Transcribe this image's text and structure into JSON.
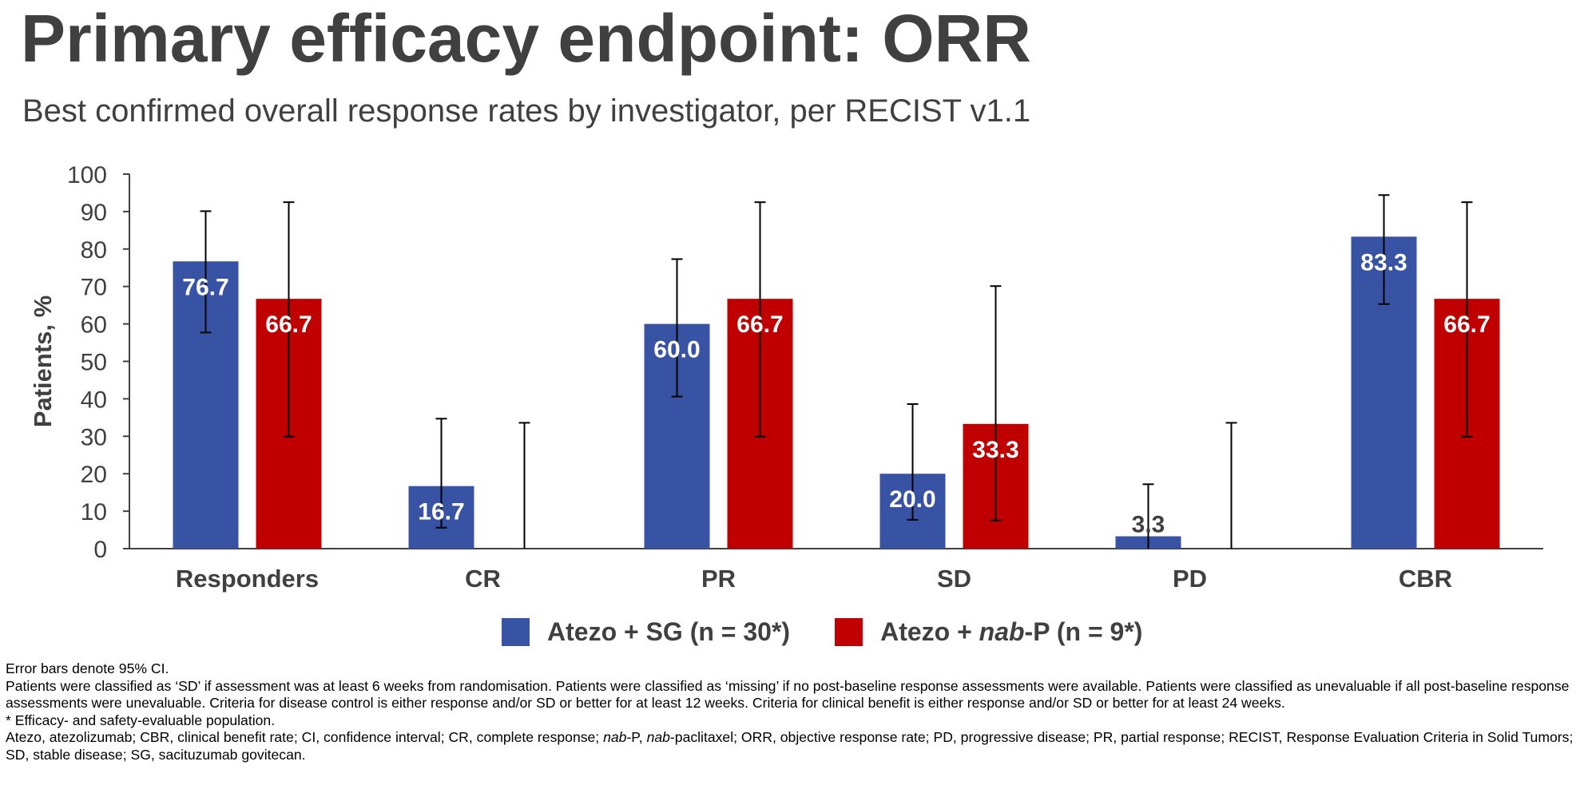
{
  "title": "Primary efficacy endpoint: ORR",
  "subtitle": "Best confirmed overall response rates by investigator, per RECIST v1.1",
  "colors": {
    "atezo_sg": "#3953A4",
    "atezo_nabp": "#C00000",
    "text": "#404040"
  },
  "legend": {
    "items": [
      {
        "label": "Atezo + SG (n = 30*)",
        "color": "#3953A4"
      },
      {
        "label_pre": "Atezo + ",
        "label_italic": "nab",
        "label_post": "-P (n = 9*)",
        "color": "#C00000"
      }
    ]
  },
  "chart_data": {
    "type": "bar",
    "ylabel": "Patients, %",
    "ylim": [
      0,
      100
    ],
    "yticks": [
      0,
      10,
      20,
      30,
      40,
      50,
      60,
      70,
      80,
      90,
      100
    ],
    "categories": [
      "Responders",
      "CR",
      "PR",
      "SD",
      "PD",
      "CBR"
    ],
    "series": [
      {
        "name": "Atezo + SG (n = 30*)",
        "color": "#3953A4",
        "values": [
          76.7,
          16.7,
          60.0,
          20.0,
          3.3,
          83.3
        ],
        "labels": [
          "76.7",
          "16.7",
          "60.0",
          "20.0",
          "3.3",
          "83.3"
        ],
        "ci_low": [
          57.7,
          5.6,
          40.6,
          7.7,
          0.0,
          65.3
        ],
        "ci_high": [
          90.1,
          34.7,
          77.3,
          38.6,
          17.2,
          94.4
        ]
      },
      {
        "name": "Atezo + nab-P (n = 9*)",
        "color": "#C00000",
        "values": [
          66.7,
          0,
          66.7,
          33.3,
          0,
          66.7
        ],
        "labels": [
          "66.7",
          "",
          "66.7",
          "33.3",
          "",
          "66.7"
        ],
        "ci_low": [
          29.9,
          0.0,
          29.9,
          7.5,
          0.0,
          29.9
        ],
        "ci_high": [
          92.5,
          33.6,
          92.5,
          70.1,
          33.6,
          92.5
        ]
      }
    ]
  },
  "footnotes": {
    "line1": "Error bars denote 95% CI.",
    "line2": "Patients were classified as ‘SD’ if assessment was at least 6 weeks from randomisation. Patients were classified as ‘missing’ if no post-baseline response assessments were available. Patients were classified as unevaluable if all post-baseline response assessments were unevaluable. Criteria for disease control is either response and/or SD or better for at least 12 weeks. Criteria for clinical benefit is either response and/or SD or better for at least 24 weeks.",
    "line3": "* Efficacy- and safety-evaluable population.",
    "line4_pre": "Atezo, atezolizumab; CBR, clinical benefit rate; CI, confidence interval; CR, complete response; ",
    "line4_i1": "nab",
    "line4_mid": "-P, ",
    "line4_i2": "nab",
    "line4_post": "-paclitaxel; ORR, objective response rate; PD, progressive disease; PR, partial response; RECIST, Response Evaluation Criteria in Solid Tumors; SD, stable disease; SG, sacituzumab govitecan."
  }
}
